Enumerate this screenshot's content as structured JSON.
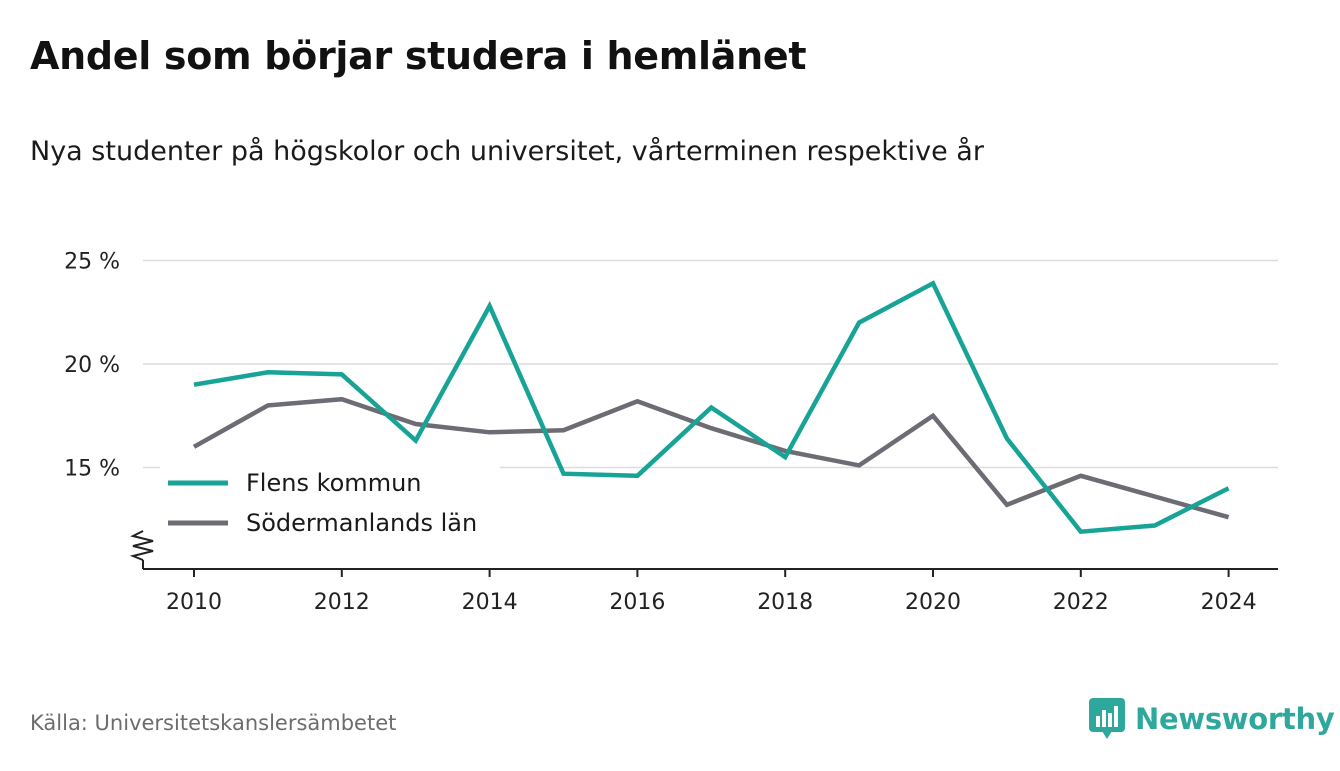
{
  "title": "Andel som börjar studera i hemlänet",
  "subtitle": "Nya studenter på högskolor och universitet, vårterminen respektive år",
  "source": "Källa: Universitetskanslersämbetet",
  "brand": {
    "name": "Newsworthy",
    "logo_icon": "bar-chart-speech-bubble-icon"
  },
  "colors": {
    "flens": "#17a395",
    "sodermanland": "#6d6b73",
    "grid": "#dcdcdc",
    "axis": "#222222",
    "brand": "#2ea79c"
  },
  "chart_data": {
    "type": "line",
    "x": [
      2010,
      2011,
      2012,
      2013,
      2014,
      2015,
      2016,
      2017,
      2018,
      2019,
      2020,
      2021,
      2022,
      2023,
      2024
    ],
    "x_ticks": [
      2010,
      2012,
      2014,
      2016,
      2018,
      2020,
      2022,
      2024
    ],
    "y_ticks": [
      15,
      20,
      25
    ],
    "y_tick_labels": [
      "15 %",
      "20 %",
      "25 %"
    ],
    "ylim": [
      10,
      25
    ],
    "y_axis_break": true,
    "grid": true,
    "legend_position": "bottom-left",
    "series": [
      {
        "name": "Flens kommun",
        "color": "#17a395",
        "values": [
          19.0,
          19.6,
          19.5,
          16.3,
          22.8,
          14.7,
          14.6,
          17.9,
          15.5,
          22.0,
          23.9,
          16.4,
          11.9,
          12.2,
          14.0
        ]
      },
      {
        "name": "Södermanlands län",
        "color": "#6d6b73",
        "values": [
          16.0,
          18.0,
          18.3,
          17.1,
          16.7,
          16.8,
          18.2,
          16.9,
          15.8,
          15.1,
          17.5,
          13.2,
          14.6,
          13.6,
          12.6
        ]
      }
    ]
  }
}
